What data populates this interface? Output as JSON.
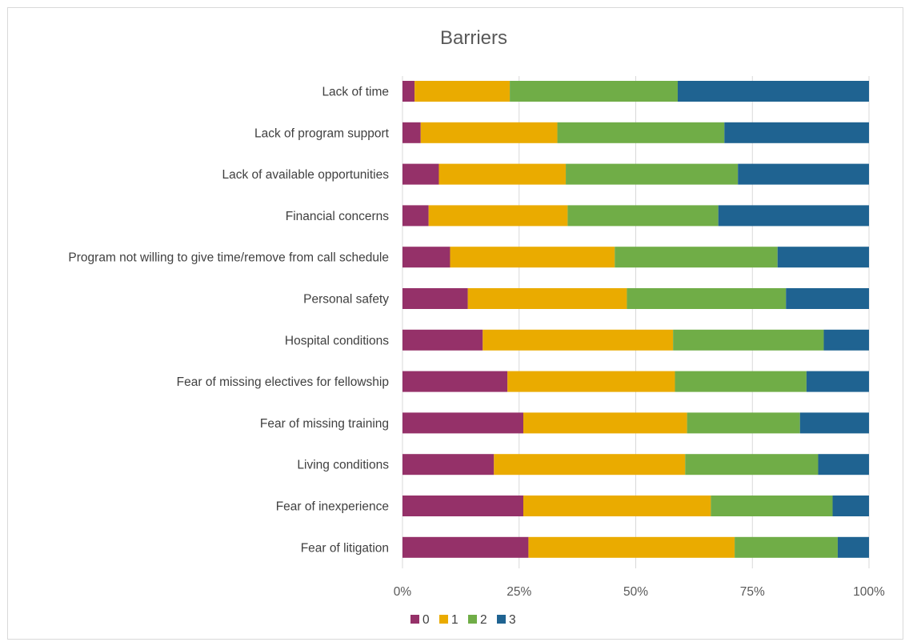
{
  "chart_data": {
    "type": "bar",
    "orientation": "horizontal",
    "stacked": "percent",
    "title": "Barriers",
    "categories": [
      "Lack of time",
      "Lack of program support",
      "Lack of available opportunities",
      "Financial concerns",
      "Program not willing to give time/remove from call schedule",
      "Personal safety",
      "Hospital conditions",
      "Fear of missing electives for fellowship",
      "Fear of missing training",
      "Living conditions",
      "Fear of inexperience",
      "Fear of litigation"
    ],
    "series": [
      {
        "name": "0",
        "color": "#953169",
        "values": [
          2.6,
          3.9,
          7.8,
          5.6,
          10.2,
          14.0,
          17.2,
          22.5,
          25.9,
          19.6,
          25.9,
          27.0
        ]
      },
      {
        "name": "1",
        "color": "#EAAB00",
        "values": [
          20.4,
          29.3,
          27.2,
          29.8,
          35.3,
          34.1,
          40.8,
          35.9,
          35.1,
          41.0,
          40.2,
          44.2
        ]
      },
      {
        "name": "2",
        "color": "#70AD47",
        "values": [
          36.0,
          35.8,
          36.9,
          32.3,
          34.9,
          34.1,
          32.3,
          28.2,
          24.2,
          28.5,
          26.1,
          22.1
        ]
      },
      {
        "name": "3",
        "color": "#1F6391",
        "values": [
          41.0,
          31.0,
          28.1,
          32.3,
          19.6,
          17.8,
          9.7,
          13.4,
          14.8,
          10.9,
          7.8,
          6.7
        ]
      }
    ],
    "xticks": [
      "0%",
      "25%",
      "50%",
      "75%",
      "100%"
    ],
    "xlim": [
      0,
      100
    ],
    "grid": true,
    "legend_position": "bottom"
  }
}
